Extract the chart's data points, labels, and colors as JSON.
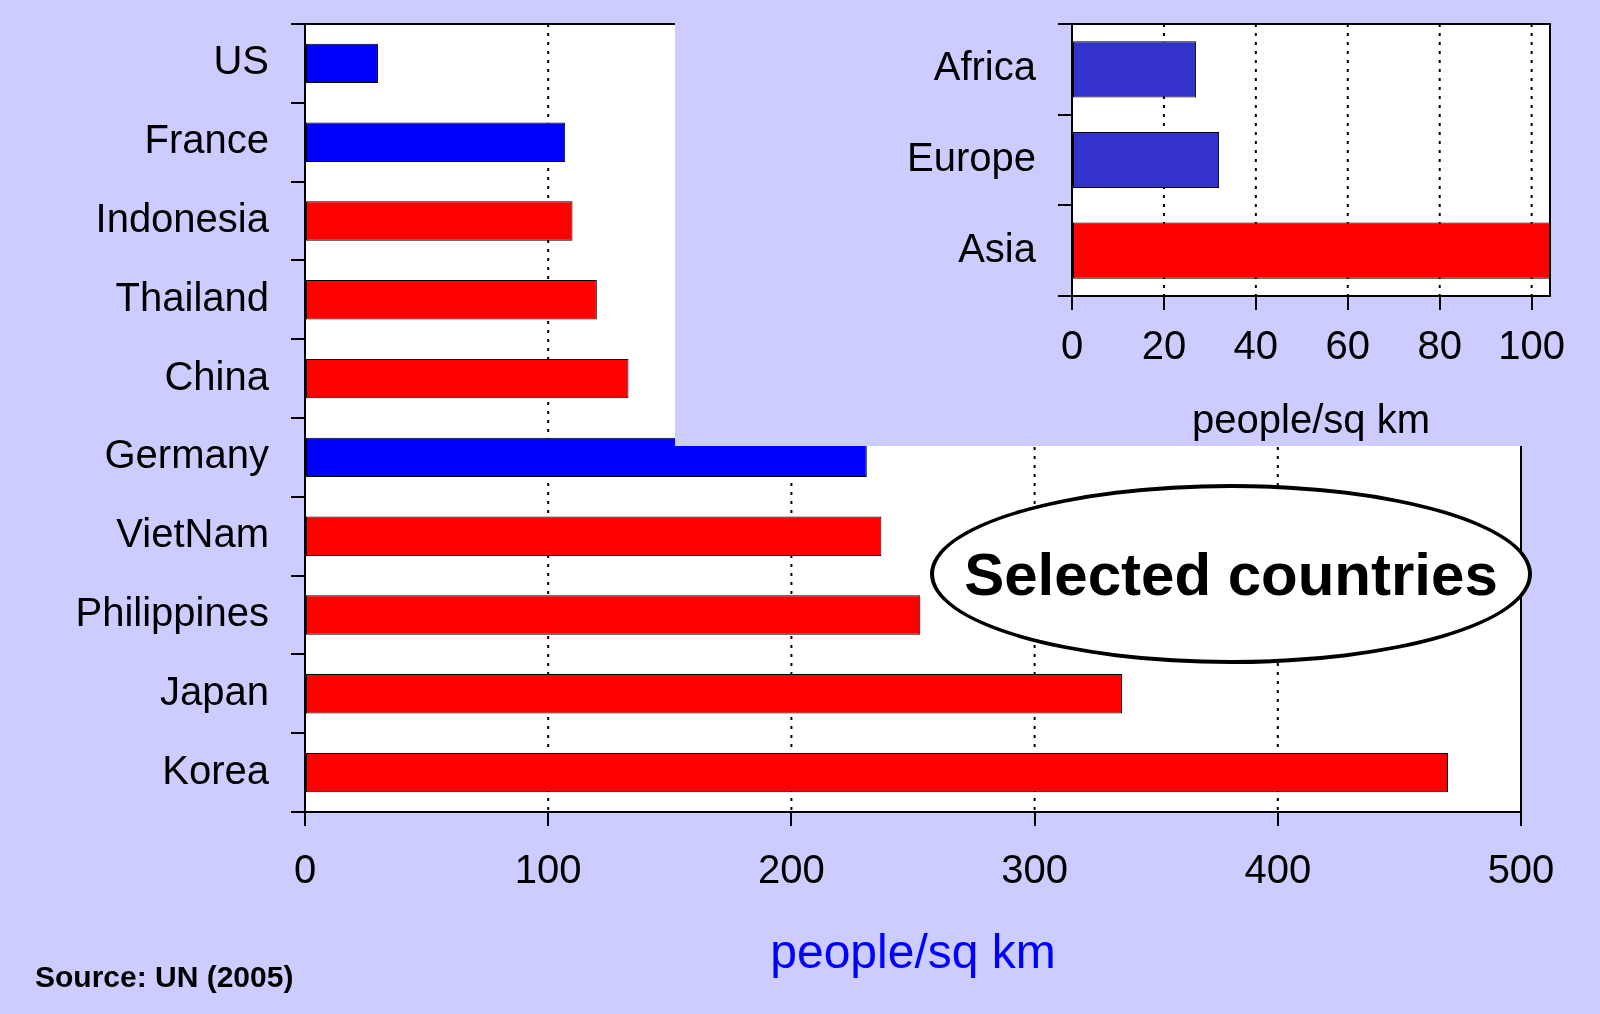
{
  "chart_data": [
    {
      "type": "bar",
      "orientation": "horizontal",
      "categories": [
        "US",
        "France",
        "Indonesia",
        "Thailand",
        "China",
        "Germany",
        "VietNam",
        "Philippines",
        "Japan",
        "Korea"
      ],
      "values": [
        30,
        107,
        110,
        120,
        133,
        231,
        237,
        253,
        336,
        470
      ],
      "colors": [
        "#0000ff",
        "#0000ff",
        "#ff0000",
        "#ff0000",
        "#ff0000",
        "#0000ff",
        "#ff0000",
        "#ff0000",
        "#ff0000",
        "#ff0000"
      ],
      "xlim": [
        0,
        500
      ],
      "xticks": [
        0,
        100,
        200,
        300,
        400,
        500
      ],
      "xlabel": "people/sq km",
      "grid": "x",
      "legend": false,
      "annotations": [
        "Selected countries",
        "Source: UN (2005)"
      ]
    },
    {
      "type": "bar",
      "orientation": "horizontal",
      "categories": [
        "Africa",
        "Europe",
        "Asia"
      ],
      "values": [
        27,
        32,
        104
      ],
      "colors": [
        "#3333cc",
        "#3333cc",
        "#ff0000"
      ],
      "xlim": [
        0,
        104
      ],
      "xticks": [
        0,
        20,
        40,
        60,
        80,
        100
      ],
      "xlabel": "people/sq km",
      "grid": "x",
      "legend": false
    }
  ]
}
